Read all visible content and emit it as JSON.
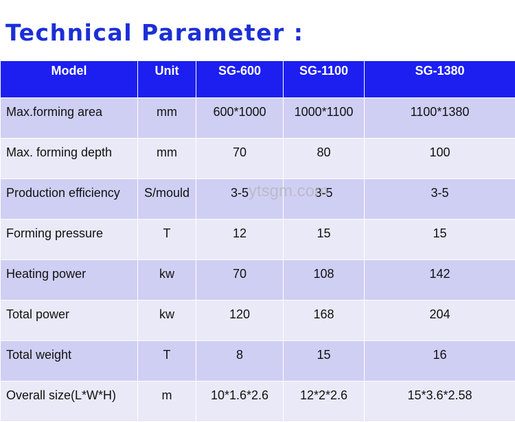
{
  "title": "Technical Parameter :",
  "watermark": "ytsgm.com",
  "table": {
    "headers": [
      "Model",
      "Unit",
      "SG-600",
      "SG-1100",
      "SG-1380"
    ],
    "rows": [
      [
        "Max.forming area",
        "mm",
        "600*1000",
        "1000*1100",
        "1100*1380"
      ],
      [
        "Max. forming depth",
        "mm",
        "70",
        "80",
        "100"
      ],
      [
        "Production efficiency",
        "S/mould",
        "3-5",
        "3-5",
        "3-5"
      ],
      [
        "Forming pressure",
        "T",
        "12",
        "15",
        "15"
      ],
      [
        "Heating power",
        "kw",
        "70",
        "108",
        "142"
      ],
      [
        "Total power",
        "kw",
        "120",
        "168",
        "204"
      ],
      [
        "Total weight",
        "T",
        "8",
        "15",
        "16"
      ],
      [
        "Overall size(L*W*H)",
        "m",
        "10*1.6*2.6",
        "12*2*2.6",
        "15*3.6*2.58"
      ]
    ]
  },
  "colors": {
    "title": "#1c2fd6",
    "header_bg": "#1c1ff0",
    "row_dark": "#cfcff4",
    "row_light": "#e9e9f8"
  }
}
